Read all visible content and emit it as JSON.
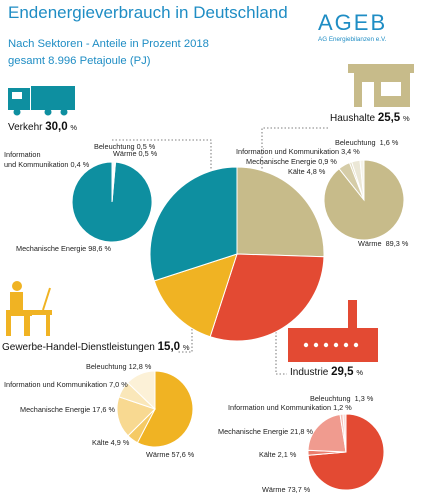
{
  "header": {
    "title": "Endenergieverbrauch in Deutschland",
    "subtitle": "Nach Sektoren - Anteile in Prozent 2018",
    "total": "gesamt 8.996 Petajoule (PJ)"
  },
  "logo": {
    "name": "AGEB",
    "tagline": "AG Energiebilanzen e.V."
  },
  "colors": {
    "verkehr": "#0e8fa0",
    "haushalte": "#c7bb8a",
    "industrie": "#e34a33",
    "ghd": "#f0b323",
    "lines": "#555555"
  },
  "icons": {
    "verkehr": "truck-icon",
    "haushalte": "house-icon",
    "industrie": "factory-icon",
    "ghd": "office-worker-icon"
  },
  "sectors": {
    "verkehr": {
      "label": "Verkehr",
      "value": "30,0",
      "unit": "%",
      "items": [
        {
          "label": "Beleuchtung",
          "value": "0,5",
          "unit": "%"
        },
        {
          "label": "Wärme",
          "value": "0,5",
          "unit": "%"
        },
        {
          "label": "Information",
          "label2": "und Kommunikation",
          "value": "0,4",
          "unit": "%"
        },
        {
          "label": "Mechanische Energie",
          "value": "98,6",
          "unit": "%"
        }
      ]
    },
    "haushalte": {
      "label": "Haushalte",
      "value": "25,5",
      "unit": "%",
      "items": [
        {
          "label": "Beleuchtung",
          "value": "1,6",
          "unit": "%"
        },
        {
          "label": "Information und Kommunikation",
          "value": "3,4",
          "unit": "%"
        },
        {
          "label": "Mechanische Energie",
          "value": "0,9",
          "unit": "%"
        },
        {
          "label": "Kälte",
          "value": "4,8",
          "unit": "%"
        },
        {
          "label": "Wärme",
          "value": "89,3",
          "unit": "%"
        }
      ]
    },
    "industrie": {
      "label": "Industrie",
      "value": "29,5",
      "unit": "%",
      "items": [
        {
          "label": "Beleuchtung",
          "value": "1,3",
          "unit": "%"
        },
        {
          "label": "Information und Kommunikation",
          "value": "1,2",
          "unit": "%"
        },
        {
          "label": "Mechanische Energie",
          "value": "21,8",
          "unit": "%"
        },
        {
          "label": "Kälte",
          "value": "2,1",
          "unit": "%"
        },
        {
          "label": "Wärme",
          "value": "73,7",
          "unit": "%"
        }
      ]
    },
    "ghd": {
      "label": "Gewerbe-Handel-Dienstleistungen",
      "value": "15,0",
      "unit": "%",
      "items": [
        {
          "label": "Beleuchtung",
          "value": "12,8",
          "unit": "%"
        },
        {
          "label": "Information und Kommunikation",
          "value": "7,0",
          "unit": "%"
        },
        {
          "label": "Mechanische Energie",
          "value": "17,6",
          "unit": "%"
        },
        {
          "label": "Kälte",
          "value": "4,9",
          "unit": "%"
        },
        {
          "label": "Wärme",
          "value": "57,6",
          "unit": "%"
        }
      ]
    }
  },
  "chart_data": [
    {
      "type": "pie",
      "categories": [
        "Haushalte",
        "Industrie",
        "Gewerbe-Handel-Dienstleistungen",
        "Verkehr"
      ],
      "values": [
        25.5,
        29.5,
        15.0,
        30.0
      ]
    },
    {
      "type": "pie",
      "categories": [
        "Mechanische Energie",
        "Information und Kommunikation",
        "Beleuchtung",
        "Wärme"
      ],
      "values": [
        98.6,
        0.4,
        0.5,
        0.5
      ]
    },
    {
      "type": "pie",
      "categories": [
        "Wärme",
        "Kälte",
        "Mechanische Energie",
        "Information und Kommunikation",
        "Beleuchtung"
      ],
      "values": [
        89.3,
        4.8,
        0.9,
        3.4,
        1.6
      ]
    },
    {
      "type": "pie",
      "categories": [
        "Wärme",
        "Kälte",
        "Mechanische Energie",
        "Information und Kommunikation",
        "Beleuchtung"
      ],
      "values": [
        57.6,
        4.9,
        17.6,
        7.0,
        12.8
      ]
    },
    {
      "type": "pie",
      "categories": [
        "Wärme",
        "Kälte",
        "Mechanische Energie",
        "Information und Kommunikation",
        "Beleuchtung"
      ],
      "values": [
        73.7,
        2.1,
        21.8,
        1.2,
        1.3
      ]
    }
  ]
}
